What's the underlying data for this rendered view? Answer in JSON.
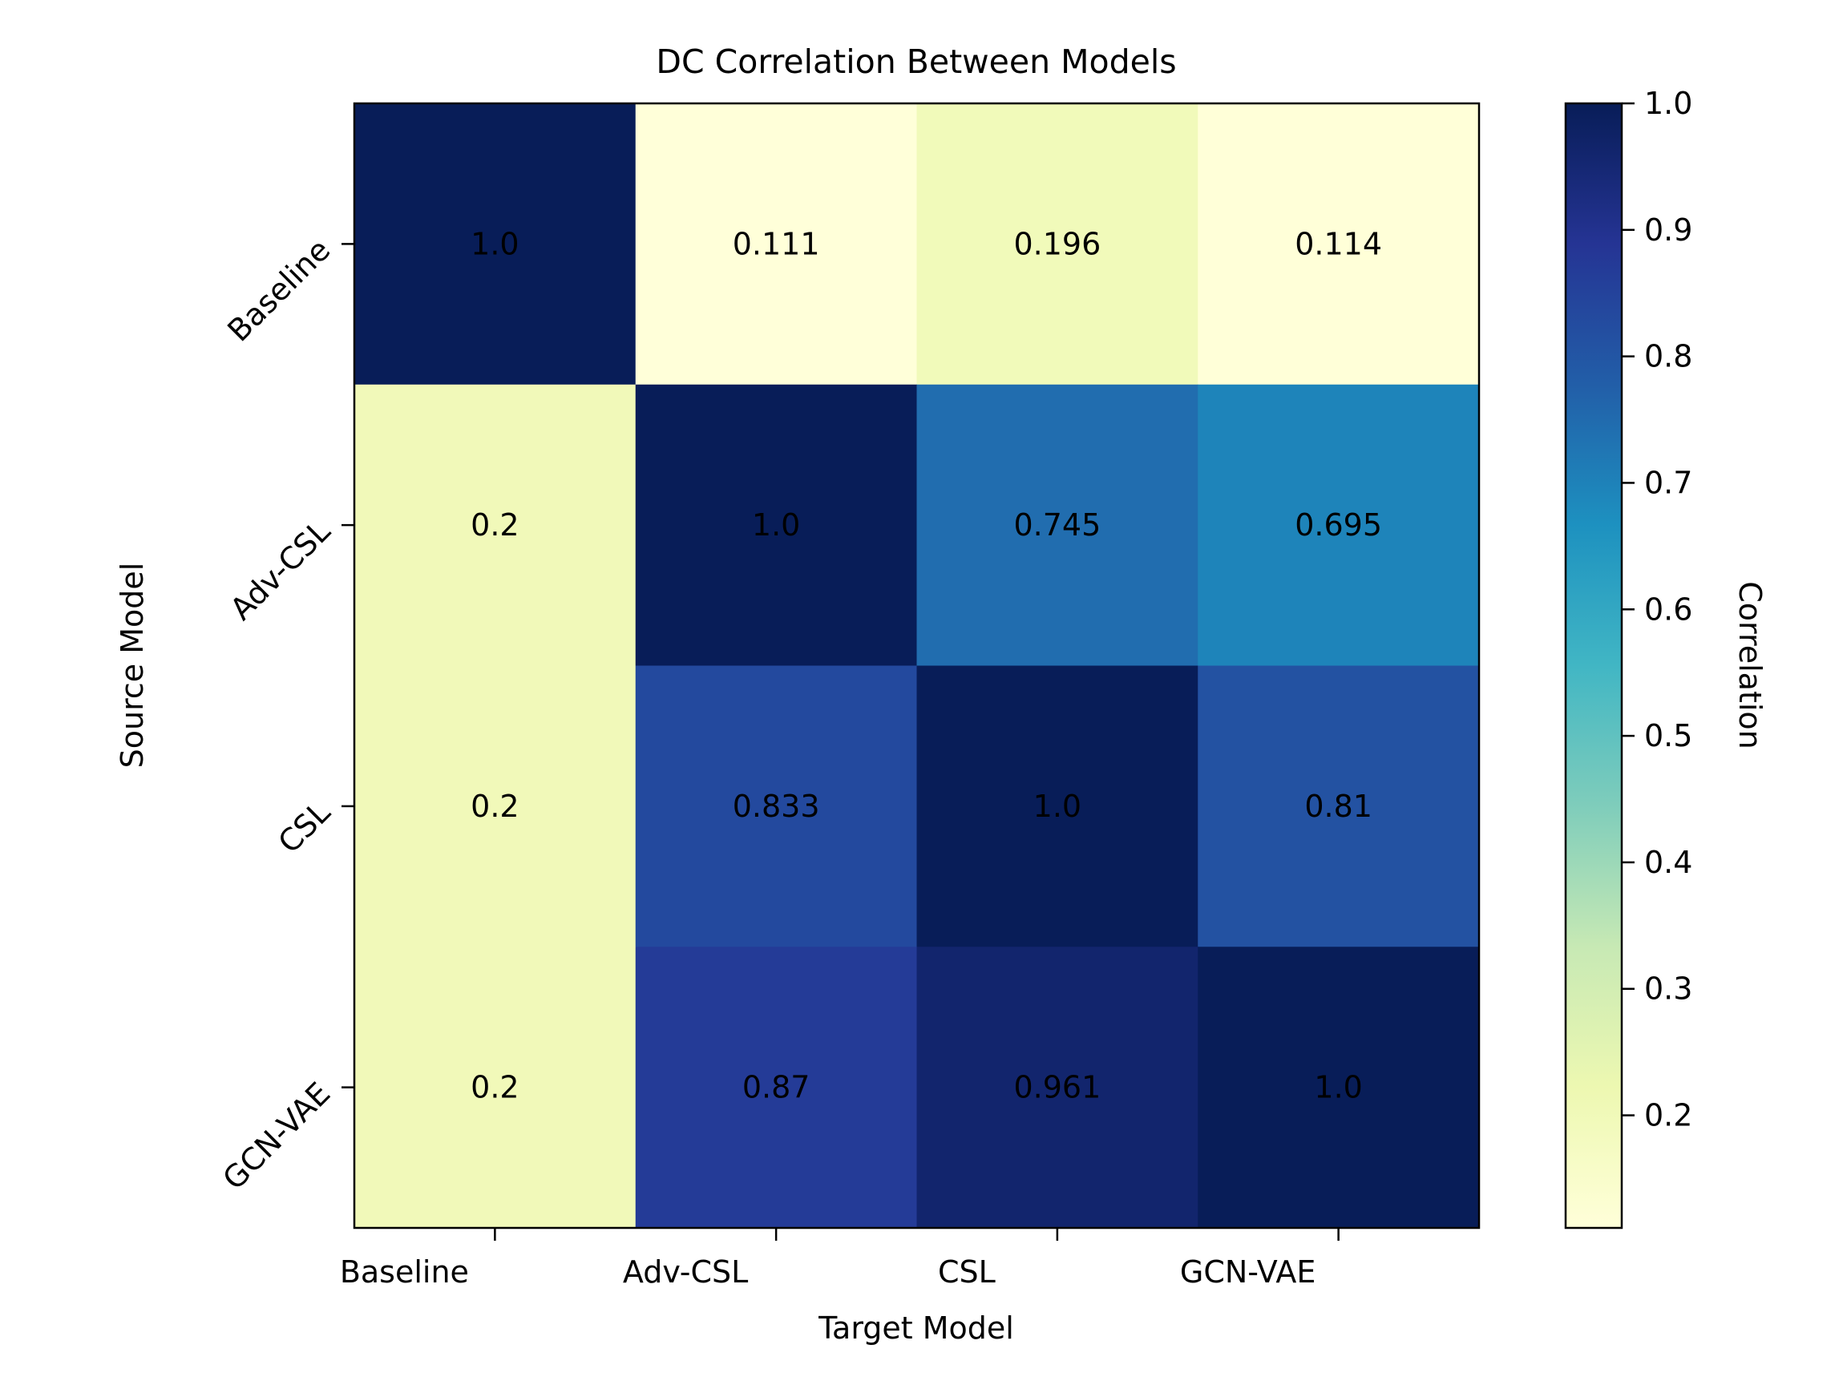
{
  "chart_data": {
    "type": "heatmap",
    "title": "DC Correlation Between Models",
    "xlabel": "Target Model",
    "ylabel": "Source Model",
    "x_categories": [
      "Baseline",
      "Adv-CSL",
      "CSL",
      "GCN-VAE"
    ],
    "y_categories": [
      "Baseline",
      "Adv-CSL",
      "CSL",
      "GCN-VAE"
    ],
    "values": [
      [
        1.0,
        0.111,
        0.196,
        0.114
      ],
      [
        0.2,
        1.0,
        0.745,
        0.695
      ],
      [
        0.2,
        0.833,
        1.0,
        0.81
      ],
      [
        0.2,
        0.87,
        0.961,
        1.0
      ]
    ],
    "cell_labels": [
      [
        "1.0",
        "0.111",
        "0.196",
        "0.114"
      ],
      [
        "0.2",
        "1.0",
        "0.745",
        "0.695"
      ],
      [
        "0.2",
        "0.833",
        "1.0",
        "0.81"
      ],
      [
        "0.2",
        "0.87",
        "0.961",
        "1.0"
      ]
    ],
    "colormap": "YlGnBu",
    "colorbar": {
      "label": "Correlation",
      "range": [
        0.111,
        1.0
      ],
      "ticks": [
        "0.2",
        "0.3",
        "0.4",
        "0.5",
        "0.6",
        "0.7",
        "0.8",
        "0.9",
        "1.0"
      ]
    },
    "colormap_stops": [
      "#ffffd9",
      "#edf8b1",
      "#c7e9b4",
      "#7fcdbb",
      "#41b6c4",
      "#1d91c0",
      "#225ea8",
      "#253494",
      "#081d58"
    ]
  }
}
